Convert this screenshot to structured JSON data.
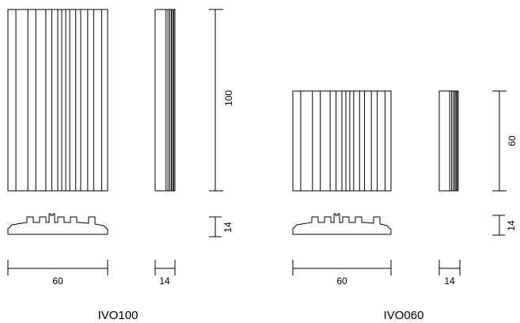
{
  "models": [
    {
      "name": "IVO100",
      "dim_width": "60",
      "dim_depth_front": "14",
      "dim_height": "100",
      "dim_depth_side": "14"
    },
    {
      "name": "IVO060",
      "dim_width": "60",
      "dim_depth_front": "14",
      "dim_height": "60",
      "dim_depth_side": "14"
    }
  ]
}
